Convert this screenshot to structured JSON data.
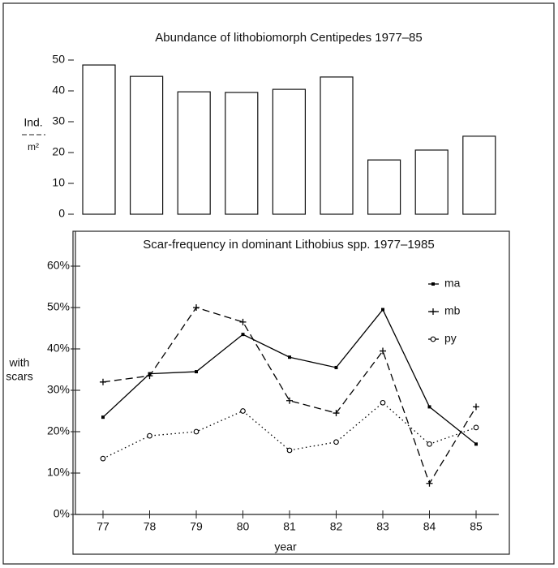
{
  "chart_data": [
    {
      "type": "bar",
      "title": "Abundance of lithobiomorph Centipedes 1977–85",
      "ylabel_top": "Ind.",
      "ylabel_bottom": "m²",
      "categories": [
        null,
        null,
        null,
        null,
        null,
        null,
        null,
        null,
        null
      ],
      "values": [
        48.4,
        44.7,
        39.7,
        39.5,
        40.5,
        44.5,
        17.6,
        20.8,
        25.3
      ],
      "color": "#ffffff",
      "ylim": [
        0,
        50
      ],
      "yticks": [
        0,
        10,
        20,
        30,
        40,
        50
      ],
      "grid": false
    },
    {
      "type": "line",
      "title": "Scar-frequency in dominant Lithobius spp. 1977–1985",
      "xlabel": "year",
      "ylabel_top": "with",
      "ylabel_bottom": "scars",
      "categories": [
        "77",
        "78",
        "79",
        "80",
        "81",
        "82",
        "83",
        "84",
        "85"
      ],
      "series": [
        {
          "name": "ma",
          "color": "#000000",
          "style": "solid",
          "marker": "square",
          "values": [
            23.5,
            34,
            34.5,
            43.5,
            38,
            35.5,
            49.5,
            26,
            17
          ]
        },
        {
          "name": "mb",
          "color": "#000000",
          "style": "dashed",
          "marker": "plus",
          "values": [
            32,
            33.5,
            50,
            46.5,
            27.5,
            24.5,
            39.5,
            7.5,
            26
          ]
        },
        {
          "name": "py",
          "color": "#000000",
          "style": "dotted",
          "marker": "circle",
          "values": [
            13.5,
            19,
            20,
            25,
            15.5,
            17.5,
            27,
            17,
            21
          ]
        }
      ],
      "ylim": [
        0,
        68
      ],
      "yticks": [
        {
          "value": 0,
          "label": "0%"
        },
        {
          "value": 10,
          "label": "10%"
        },
        {
          "value": 20,
          "label": "20%"
        },
        {
          "value": 30,
          "label": "30%"
        },
        {
          "value": 40,
          "label": "40%"
        },
        {
          "value": 50,
          "label": "50%"
        },
        {
          "value": 60,
          "label": "60%"
        }
      ],
      "grid": false,
      "legend": "upper right"
    }
  ]
}
